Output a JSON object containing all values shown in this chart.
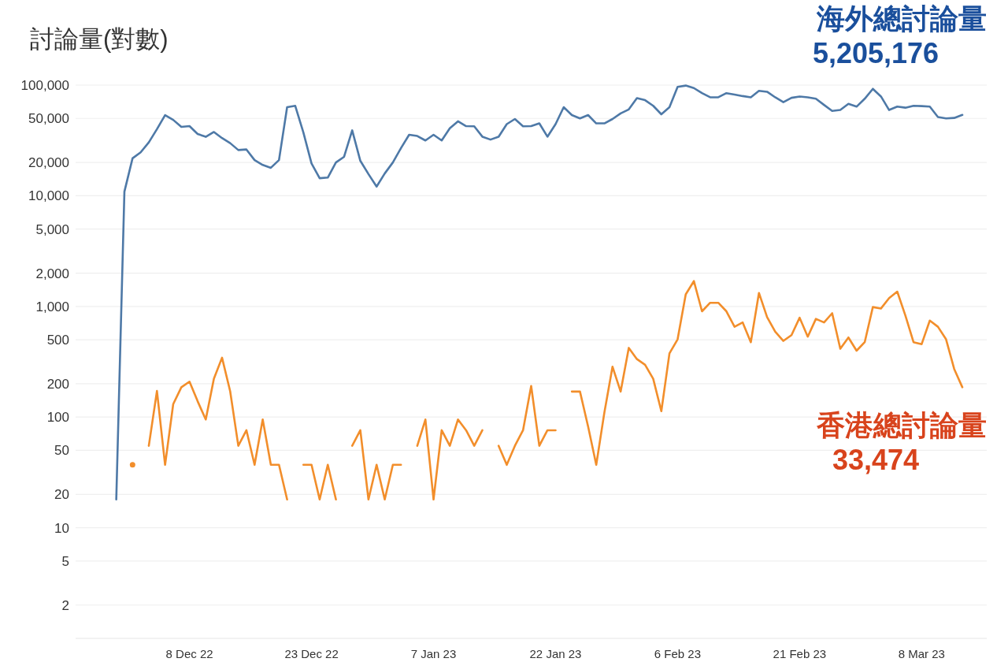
{
  "chart_data": {
    "type": "line",
    "ylabel": "討論量(對數)",
    "log": "y",
    "grid": "y",
    "xlim": [
      "2022-11-24",
      "2023-03-16"
    ],
    "ylim": [
      1,
      100000
    ],
    "xticks": [
      {
        "value": "2022-12-08",
        "label": "8 Dec 22"
      },
      {
        "value": "2022-12-23",
        "label": "23 Dec 22"
      },
      {
        "value": "2023-01-07",
        "label": "7 Jan 23"
      },
      {
        "value": "2023-01-22",
        "label": "22 Jan 23"
      },
      {
        "value": "2023-02-06",
        "label": "6 Feb 23"
      },
      {
        "value": "2023-02-21",
        "label": "21 Feb 23"
      },
      {
        "value": "2023-03-08",
        "label": "8 Mar 23"
      }
    ],
    "yticks": [
      2,
      5,
      10,
      20,
      50,
      100,
      200,
      500,
      {
        "value": 1000,
        "label": "1,000"
      },
      {
        "value": 2000,
        "label": "2,000"
      },
      {
        "value": 5000,
        "label": "5,000"
      },
      {
        "value": 10000,
        "label": "10,000"
      },
      {
        "value": 20000,
        "label": "20,000"
      },
      {
        "value": 50000,
        "label": "50,000"
      },
      {
        "value": 100000,
        "label": "100,000"
      }
    ],
    "x": [
      "2022-11-29",
      "2022-11-30",
      "2022-12-01",
      "2022-12-02",
      "2022-12-03",
      "2022-12-04",
      "2022-12-05",
      "2022-12-06",
      "2022-12-07",
      "2022-12-08",
      "2022-12-09",
      "2022-12-10",
      "2022-12-11",
      "2022-12-12",
      "2022-12-13",
      "2022-12-14",
      "2022-12-15",
      "2022-12-16",
      "2022-12-17",
      "2022-12-18",
      "2022-12-19",
      "2022-12-20",
      "2022-12-21",
      "2022-12-22",
      "2022-12-23",
      "2022-12-24",
      "2022-12-25",
      "2022-12-26",
      "2022-12-27",
      "2022-12-28",
      "2022-12-29",
      "2022-12-30",
      "2022-12-31",
      "2023-01-01",
      "2023-01-02",
      "2023-01-03",
      "2023-01-04",
      "2023-01-05",
      "2023-01-06",
      "2023-01-07",
      "2023-01-08",
      "2023-01-09",
      "2023-01-10",
      "2023-01-11",
      "2023-01-12",
      "2023-01-13",
      "2023-01-14",
      "2023-01-15",
      "2023-01-16",
      "2023-01-17",
      "2023-01-18",
      "2023-01-19",
      "2023-01-20",
      "2023-01-21",
      "2023-01-22",
      "2023-01-23",
      "2023-01-24",
      "2023-01-25",
      "2023-01-26",
      "2023-01-27",
      "2023-01-28",
      "2023-01-29",
      "2023-01-30",
      "2023-01-31",
      "2023-02-01",
      "2023-02-02",
      "2023-02-03",
      "2023-02-04",
      "2023-02-05",
      "2023-02-06",
      "2023-02-07",
      "2023-02-08",
      "2023-02-09",
      "2023-02-10",
      "2023-02-11",
      "2023-02-12",
      "2023-02-13",
      "2023-02-14",
      "2023-02-15",
      "2023-02-16",
      "2023-02-17",
      "2023-02-18",
      "2023-02-19",
      "2023-02-20",
      "2023-02-21",
      "2023-02-22",
      "2023-02-23",
      "2023-02-24",
      "2023-02-25",
      "2023-02-26",
      "2023-02-27",
      "2023-02-28",
      "2023-03-01",
      "2023-03-02",
      "2023-03-03",
      "2023-03-04",
      "2023-03-05",
      "2023-03-06",
      "2023-03-07",
      "2023-03-08",
      "2023-03-09",
      "2023-03-10",
      "2023-03-11",
      "2023-03-12",
      "2023-03-13"
    ],
    "series": [
      {
        "name": "海外總討論量",
        "color": "#4e79a7",
        "values": [
          18,
          10900,
          21800,
          24700,
          30400,
          40000,
          53600,
          48500,
          41900,
          42600,
          36200,
          34100,
          37700,
          33200,
          29900,
          25900,
          26200,
          21000,
          19000,
          17900,
          21000,
          63200,
          65000,
          37300,
          19600,
          14400,
          14600,
          20000,
          22500,
          39000,
          20700,
          15700,
          12100,
          15900,
          20000,
          27000,
          35600,
          34700,
          31600,
          35600,
          31600,
          40700,
          47100,
          42600,
          42400,
          34200,
          32200,
          34200,
          44400,
          49400,
          42400,
          42600,
          45100,
          34200,
          44400,
          63200,
          53600,
          50000,
          53600,
          45100,
          45100,
          49400,
          55500,
          60300,
          76200,
          73100,
          65000,
          54500,
          63200,
          96400,
          99000,
          94000,
          84600,
          77600,
          77600,
          84600,
          82200,
          79600,
          77600,
          88700,
          87100,
          77600,
          70200,
          76800,
          78900,
          77600,
          75300,
          66200,
          58500,
          59600,
          67800,
          63900,
          75300,
          92500,
          78900,
          59600,
          63900,
          62500,
          65000,
          64600,
          63900,
          51500,
          50000,
          50500,
          53800
        ]
      },
      {
        "name": "香港總討論量",
        "color": "#f28e2b",
        "values": [
          null,
          null,
          37,
          null,
          55,
          172,
          37,
          131,
          186,
          209,
          139,
          95,
          222,
          344,
          171,
          55,
          76,
          37,
          95,
          37,
          37,
          18,
          null,
          37,
          37,
          18,
          37,
          18,
          null,
          55,
          76,
          18,
          37,
          18,
          37,
          37,
          null,
          55,
          95,
          18,
          76,
          55,
          95,
          76,
          55,
          76,
          null,
          55,
          37,
          55,
          76,
          191,
          55,
          76,
          76,
          null,
          170,
          170,
          82,
          37,
          110,
          285,
          170,
          422,
          334,
          297,
          222,
          113,
          376,
          504,
          1285,
          1693,
          903,
          1078,
          1078,
          903,
          655,
          716,
          475,
          1324,
          800,
          590,
          488,
          550,
          790,
          533,
          771,
          716,
          867,
          414,
          524,
          398,
          475,
          987,
          958,
          1190,
          1361,
          828,
          475,
          456,
          745,
          655,
          504,
          272,
          186
        ]
      }
    ],
    "annotations": [
      "5,205,176",
      "33,474"
    ]
  }
}
